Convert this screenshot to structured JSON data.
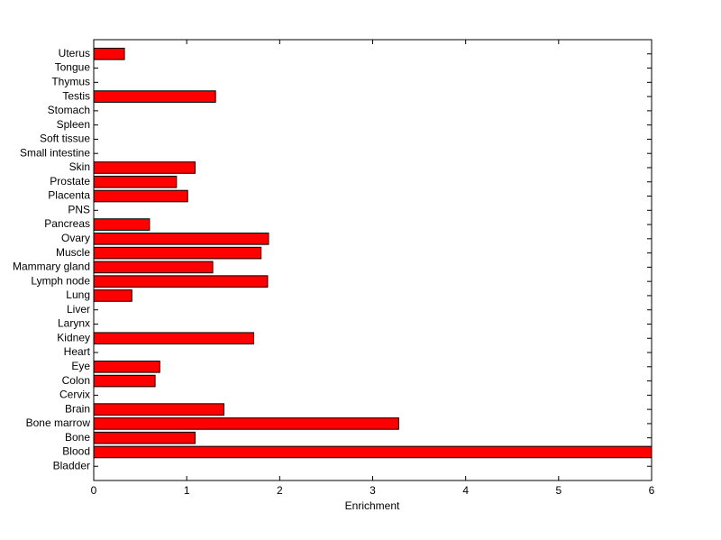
{
  "chart_data": {
    "type": "barh",
    "xlabel": "Enrichment",
    "categories": [
      "Bladder",
      "Blood",
      "Bone",
      "Bone marrow",
      "Brain",
      "Cervix",
      "Colon",
      "Eye",
      "Heart",
      "Kidney",
      "Larynx",
      "Liver",
      "Lung",
      "Lymph node",
      "Mammary gland",
      "Muscle",
      "Ovary",
      "Pancreas",
      "PNS",
      "Placenta",
      "Prostate",
      "Skin",
      "Small intestine",
      "Soft tissue",
      "Spleen",
      "Stomach",
      "Testis",
      "Thymus",
      "Tongue",
      "Uterus"
    ],
    "values": [
      0,
      6,
      1.09,
      3.28,
      1.4,
      0,
      0.66,
      0.71,
      0,
      1.72,
      0,
      0,
      0.41,
      1.87,
      1.28,
      1.8,
      1.88,
      0.6,
      0,
      1.01,
      0.89,
      1.09,
      0,
      0,
      0,
      0,
      1.31,
      0,
      0,
      0.33
    ],
    "color": "#ff0000",
    "xlim": [
      0,
      6
    ],
    "xticks": [
      0,
      1,
      2,
      3,
      4,
      5,
      6
    ],
    "grid": false
  }
}
